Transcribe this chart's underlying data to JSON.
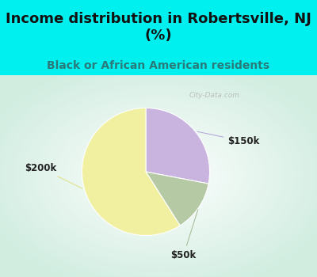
{
  "title": "Income distribution in Robertsville, NJ\n(%)",
  "subtitle": "Black or African American residents",
  "slices": [
    {
      "label": "$150k",
      "value": 28,
      "color": "#c9b4e0"
    },
    {
      "label": "$50k",
      "value": 13,
      "color": "#b4c9a4"
    },
    {
      "label": "$200k",
      "value": 59,
      "color": "#f0f0a0"
    }
  ],
  "title_color": "#111111",
  "subtitle_color": "#2a7a7a",
  "bg_cyan": "#00f0f0",
  "watermark": "City-Data.com",
  "label_fontsize": 8.5,
  "title_fontsize": 13,
  "subtitle_fontsize": 10,
  "start_angle": 90,
  "label_line_color_150k": "#b0a0d8",
  "label_line_color_50k": "#a0b890",
  "label_line_color_200k": "#e0e080"
}
